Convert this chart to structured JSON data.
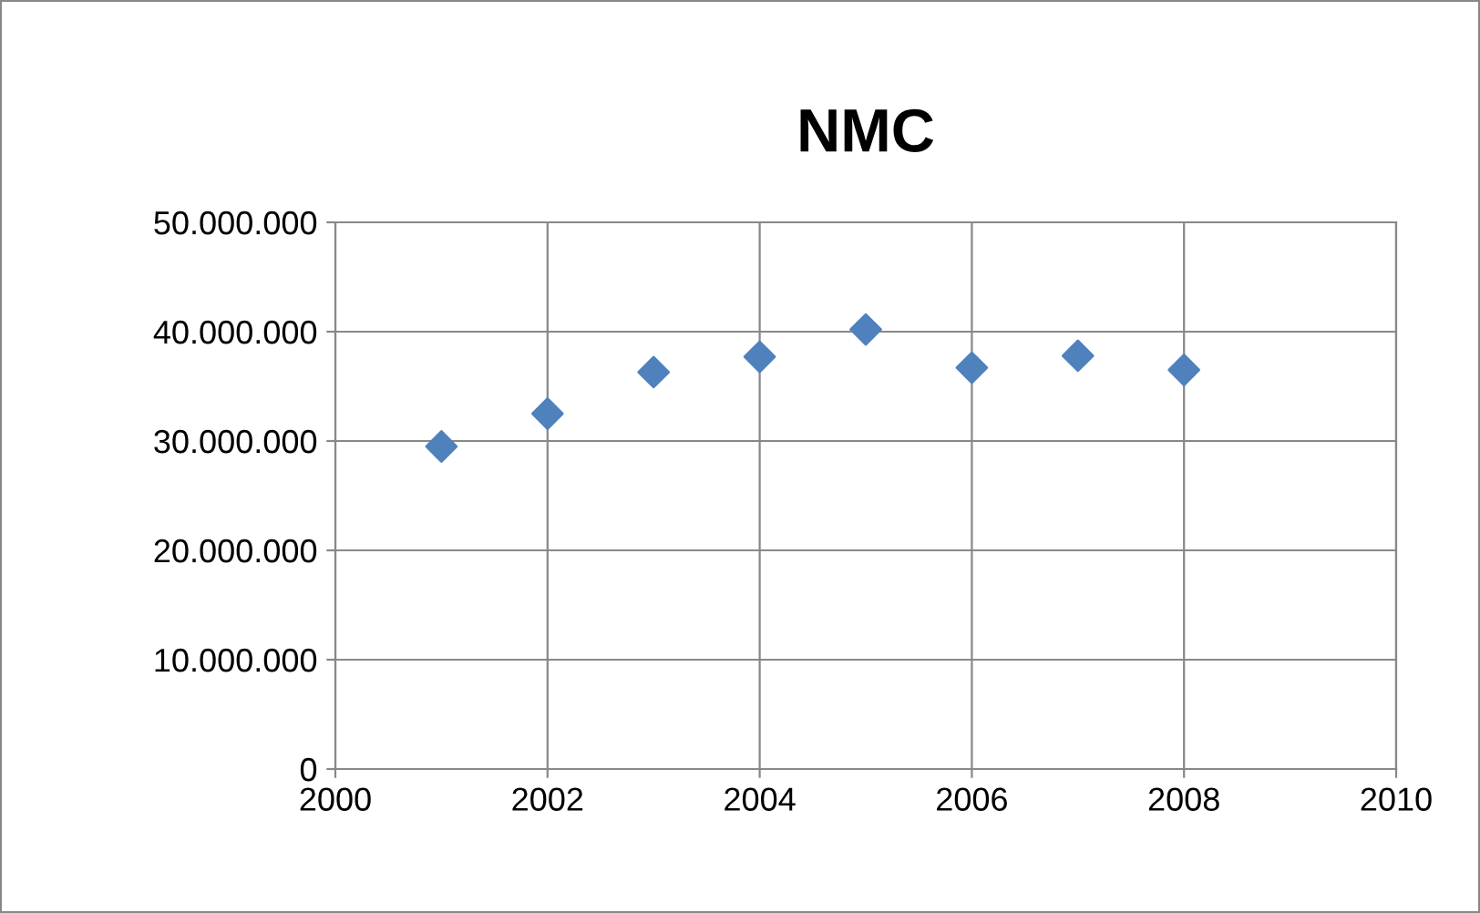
{
  "chart_data": {
    "type": "scatter",
    "title": "NMC",
    "x": [
      2001,
      2002,
      2003,
      2004,
      2005,
      2006,
      2007,
      2008
    ],
    "series": [
      {
        "color": "#4f81bd",
        "values": [
          29500000,
          32500000,
          36300000,
          37700000,
          40200000,
          36700000,
          37800000,
          36500000
        ]
      }
    ],
    "xlim": [
      2000,
      2010
    ],
    "xticks": [
      2000,
      2002,
      2004,
      2006,
      2008,
      2010
    ],
    "ylim": [
      0,
      50000000
    ],
    "yticks": [
      0,
      {
        "value": 10000000,
        "label": "10.000.000"
      },
      {
        "value": 20000000,
        "label": "20.000.000"
      },
      {
        "value": 30000000,
        "label": "30.000.000"
      },
      {
        "value": 40000000,
        "label": "40.000.000"
      },
      {
        "value": 50000000,
        "label": "50.000.000"
      }
    ],
    "grid": true,
    "marker": "diamond",
    "legend": false
  }
}
